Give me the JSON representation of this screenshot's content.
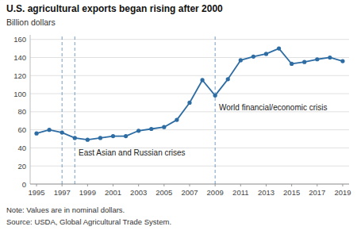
{
  "chart_data": {
    "type": "line",
    "title": "U.S. agricultural exports began rising after 2000",
    "ylabel": "Billion dollars",
    "x": [
      1995,
      1996,
      1997,
      1998,
      1999,
      2000,
      2001,
      2002,
      2003,
      2004,
      2005,
      2006,
      2007,
      2008,
      2009,
      2010,
      2011,
      2012,
      2013,
      2014,
      2015,
      2016,
      2017,
      2018,
      2019
    ],
    "values": [
      56,
      60,
      57,
      51,
      49,
      51,
      53,
      53,
      59,
      61,
      63,
      71,
      90,
      115,
      98,
      116,
      137,
      141,
      144,
      150,
      133,
      135,
      138,
      140,
      136
    ],
    "color": "#2e6da4",
    "marker": "circle",
    "xlim": [
      1994.5,
      2019.5
    ],
    "xticks": [
      1995,
      1997,
      1999,
      2001,
      2003,
      2005,
      2007,
      2009,
      2011,
      2013,
      2015,
      2017,
      2019
    ],
    "ylim": [
      0,
      165
    ],
    "yticks": [
      0,
      20,
      40,
      60,
      80,
      100,
      120,
      140,
      160
    ],
    "grid": true,
    "vlines": [
      1997,
      1998,
      2009
    ],
    "annotations": [
      {
        "text": "East Asian and Russian crises",
        "x": 1998.3,
        "y": 40
      },
      {
        "text": "World financial/economic crisis",
        "x": 2009.3,
        "y": 90
      }
    ],
    "notes": [
      "Note: Values are in nominal dollars.",
      "Source: USDA, Global Agricultural Trade System."
    ]
  }
}
